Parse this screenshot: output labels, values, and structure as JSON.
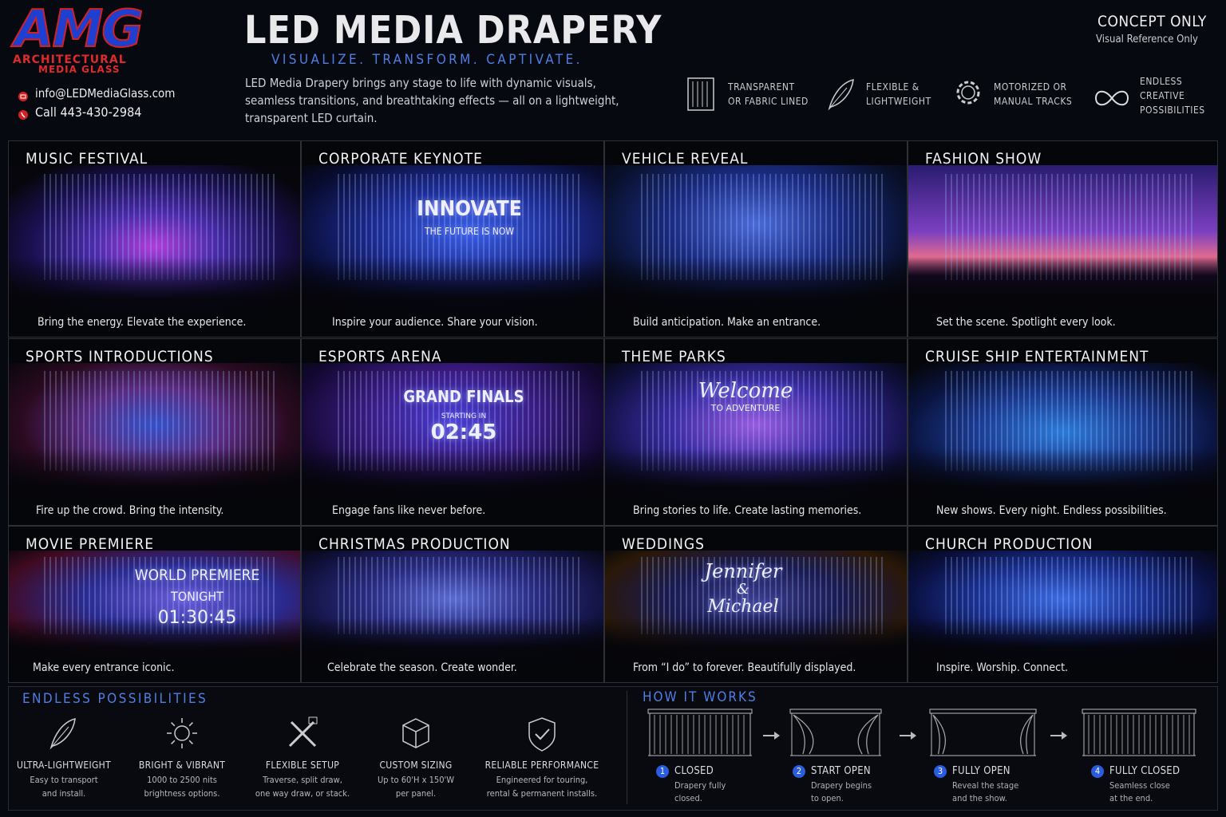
{
  "header": {
    "logo": "AMG",
    "logo_line1": "ARCHITECTURAL",
    "logo_line2": "MEDIA GLASS",
    "email": "info@LEDMediaGlass.com",
    "phone": "Call 443-430-2984",
    "title": "LED MEDIA DRAPERY",
    "tagline": "VISUALIZE. TRANSFORM. CAPTIVATE.",
    "description": [
      "LED Media Drapery brings any stage to life with dynamic visuals,",
      "seamless transitions, and breathtaking effects — all on a lightweight,",
      "transparent LED curtain."
    ],
    "concept": "CONCEPT ONLY",
    "concept_note": "Visual Reference Only",
    "features": [
      {
        "lines": [
          "TRANSPARENT",
          "OR FABRIC LINED"
        ]
      },
      {
        "lines": [
          "FLEXIBLE &",
          "LIGHTWEIGHT"
        ]
      },
      {
        "lines": [
          "MOTORIZED OR",
          "MANUAL TRACKS"
        ]
      },
      {
        "lines": [
          "ENDLESS",
          "CREATIVE",
          "POSSIBILITIES"
        ]
      }
    ]
  },
  "tiles": [
    {
      "title": "MUSIC FESTIVAL",
      "caption": "Bring the energy. Elevate the experience."
    },
    {
      "title": "CORPORATE KEYNOTE",
      "caption": "Inspire your audience. Share your vision.",
      "overlay": [
        "INNOVATE",
        "THE FUTURE IS NOW"
      ]
    },
    {
      "title": "VEHICLE REVEAL",
      "caption": "Build anticipation. Make an entrance."
    },
    {
      "title": "FASHION SHOW",
      "caption": "Set the scene. Spotlight every look."
    },
    {
      "title": "SPORTS INTRODUCTIONS",
      "caption": "Fire up the crowd. Bring the intensity."
    },
    {
      "title": "ESPORTS ARENA",
      "caption": "Engage fans like never before.",
      "overlay": [
        "GRAND FINALS",
        "STARTING IN",
        "02:45"
      ]
    },
    {
      "title": "THEME PARKS",
      "caption": "Bring stories to life. Create lasting memories.",
      "overlay": [
        "Welcome",
        "TO ADVENTURE"
      ]
    },
    {
      "title": "CRUISE SHIP ENTERTAINMENT",
      "caption": "New shows. Every night. Endless possibilities."
    },
    {
      "title": "MOVIE PREMIERE",
      "caption": "Make every entrance iconic.",
      "overlay": [
        "WORLD PREMIERE",
        "TONIGHT",
        "01:30:45"
      ]
    },
    {
      "title": "CHRISTMAS PRODUCTION",
      "caption": "Celebrate the season. Create wonder."
    },
    {
      "title": "WEDDINGS",
      "caption": "From “I do” to forever. Beautifully displayed.",
      "overlay": [
        "Jennifer",
        "&",
        "Michael"
      ]
    },
    {
      "title": "CHURCH PRODUCTION",
      "caption": "Inspire. Worship. Connect."
    }
  ],
  "possibilities": {
    "title": "ENDLESS POSSIBILITIES",
    "items": [
      {
        "title": "ULTRA-LIGHTWEIGHT",
        "lines": [
          "Easy to transport",
          "and install."
        ]
      },
      {
        "title": "BRIGHT & VIBRANT",
        "lines": [
          "1000 to 2500 nits",
          "brightness options."
        ]
      },
      {
        "title": "FLEXIBLE SETUP",
        "lines": [
          "Traverse, split draw,",
          "one way draw, or stack."
        ]
      },
      {
        "title": "CUSTOM SIZING",
        "lines": [
          "Up to 60'H x 150'W",
          "per panel."
        ]
      },
      {
        "title": "RELIABLE PERFORMANCE",
        "lines": [
          "Engineered for touring,",
          "rental & permanent installs."
        ]
      }
    ]
  },
  "how_it_works": {
    "title": "HOW IT WORKS",
    "steps": [
      {
        "number": 1,
        "title": "CLOSED",
        "lines": [
          "Drapery fully",
          "closed."
        ]
      },
      {
        "number": 2,
        "title": "START OPEN",
        "lines": [
          "Drapery begins",
          "to open."
        ]
      },
      {
        "number": 3,
        "title": "FULLY OPEN",
        "lines": [
          "Reveal the stage",
          "and the show."
        ]
      },
      {
        "number": 4,
        "title": "FULLY CLOSED",
        "lines": [
          "Seamless close",
          "at the end."
        ]
      }
    ]
  }
}
